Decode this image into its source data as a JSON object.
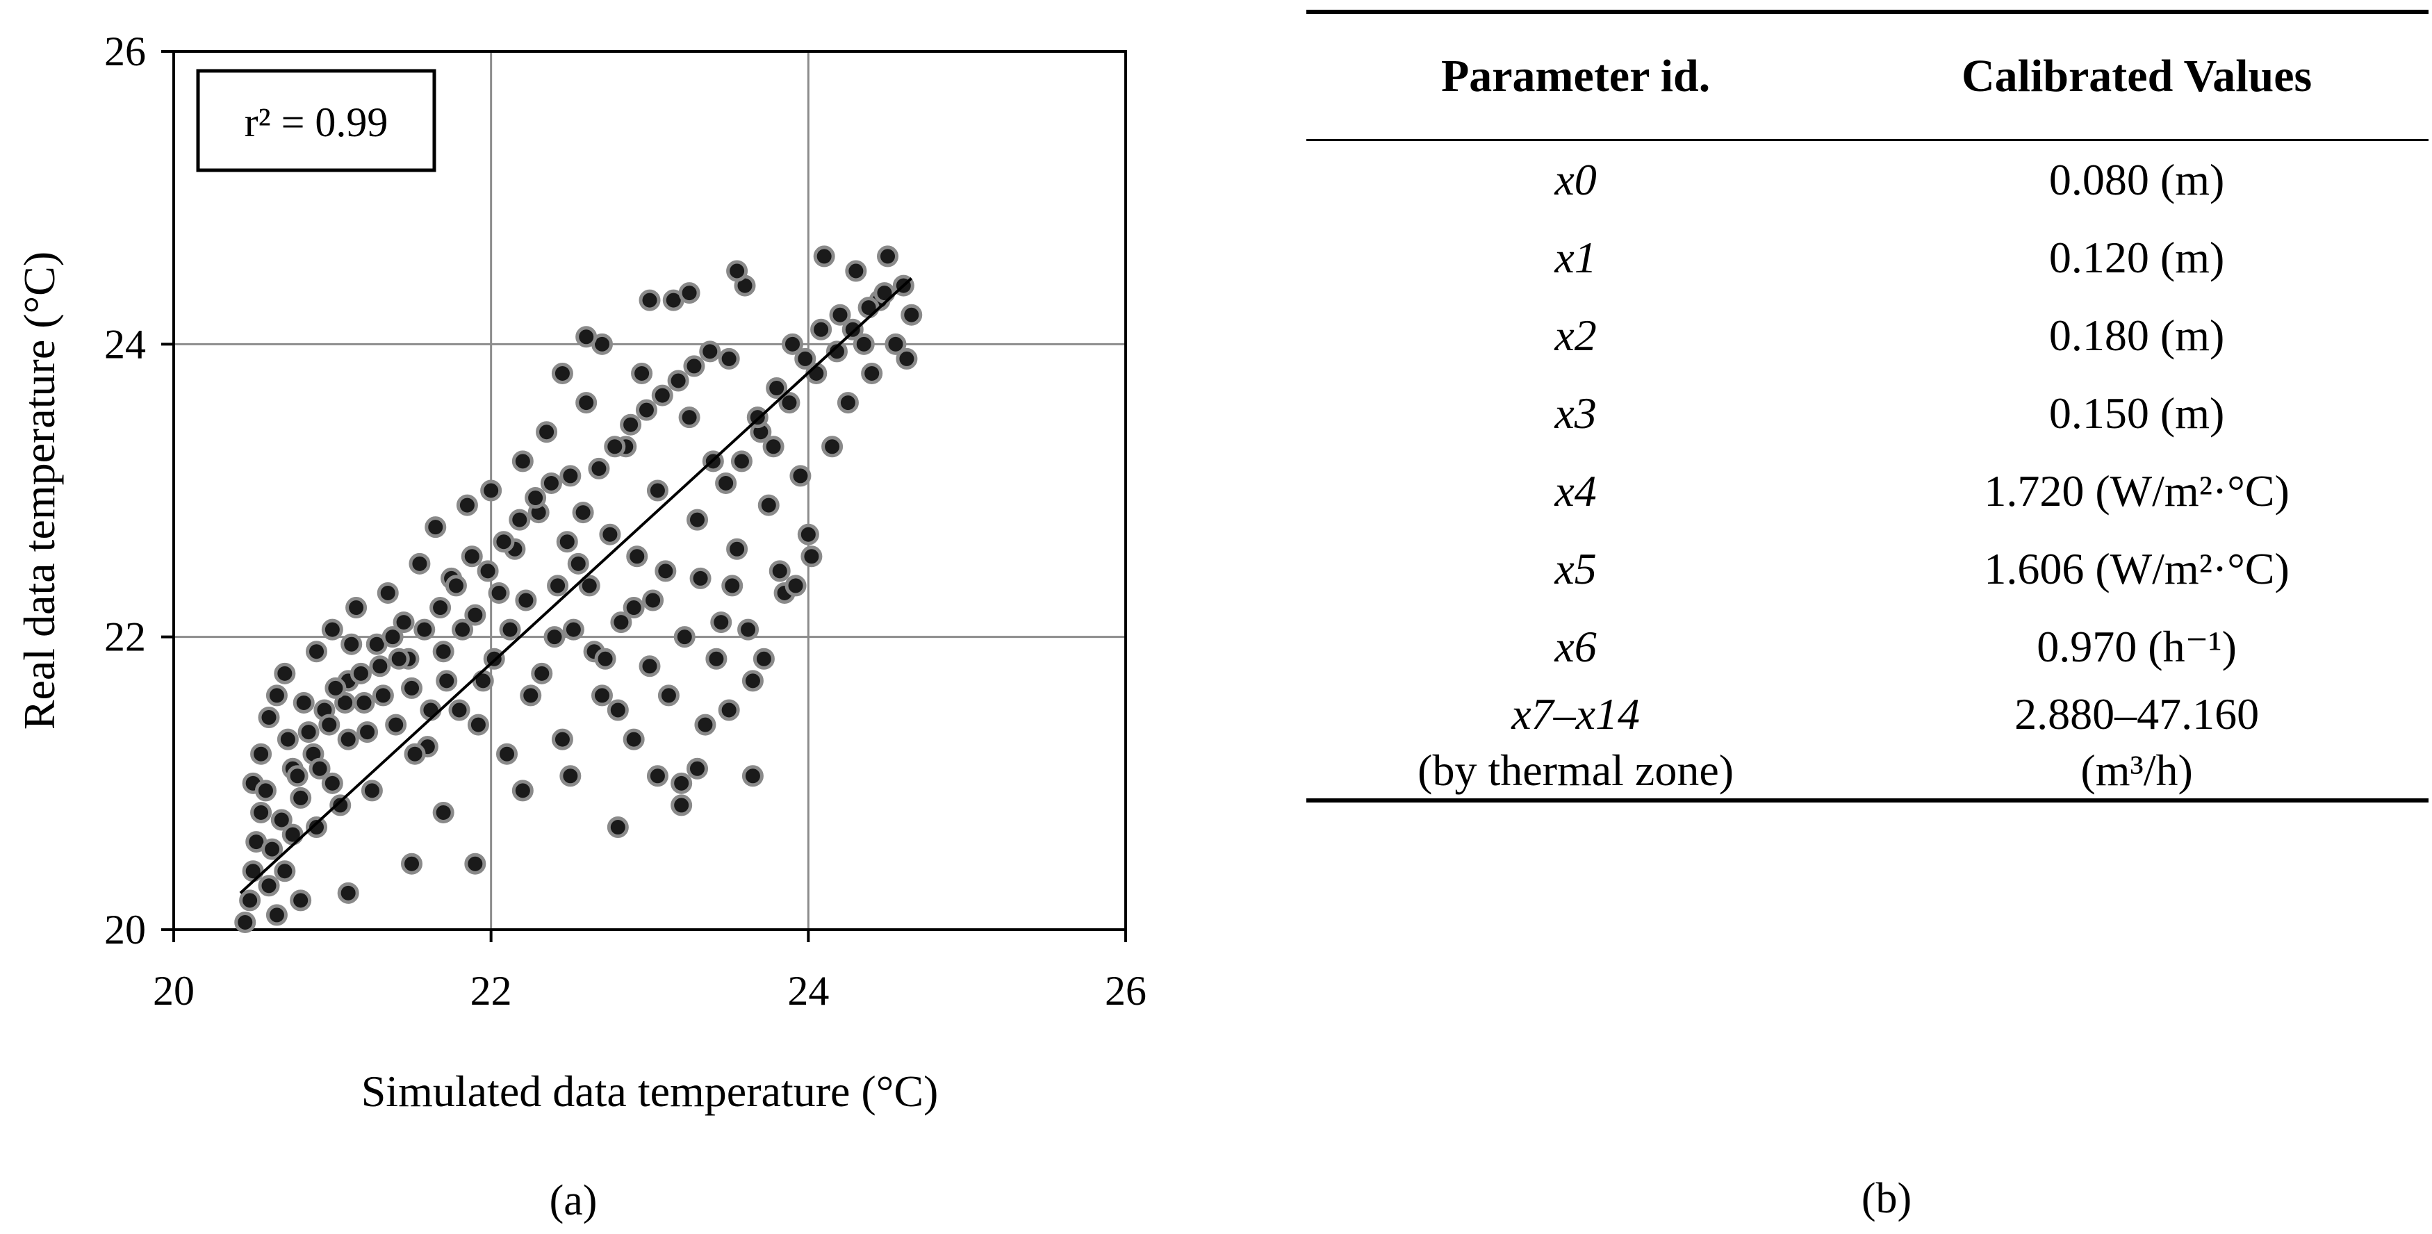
{
  "chart_data": {
    "type": "scatter",
    "xlabel": "Simulated data temperature (°C)",
    "ylabel": "Real data temperature (°C)",
    "xlim": [
      20,
      26
    ],
    "ylim": [
      20,
      26
    ],
    "xticks": [
      20,
      22,
      24,
      26
    ],
    "yticks": [
      20,
      22,
      24,
      26
    ],
    "grid": true,
    "annotation": "r² = 0.99",
    "marker_color": "#1a1a1a",
    "marker_edge": "#8a8a8a",
    "trendline": {
      "x": [
        20.42,
        24.65
      ],
      "y": [
        20.25,
        24.45
      ]
    },
    "points": [
      [
        20.45,
        20.05
      ],
      [
        20.48,
        20.2
      ],
      [
        20.5,
        20.4
      ],
      [
        20.52,
        20.6
      ],
      [
        20.55,
        20.8
      ],
      [
        20.5,
        21.0
      ],
      [
        20.6,
        20.3
      ],
      [
        20.62,
        20.55
      ],
      [
        20.65,
        20.1
      ],
      [
        20.7,
        20.4
      ],
      [
        20.75,
        20.65
      ],
      [
        20.8,
        20.2
      ],
      [
        20.55,
        21.2
      ],
      [
        20.6,
        21.45
      ],
      [
        20.65,
        21.6
      ],
      [
        20.7,
        21.75
      ],
      [
        20.75,
        21.1
      ],
      [
        20.8,
        20.9
      ],
      [
        20.85,
        21.35
      ],
      [
        20.9,
        20.7
      ],
      [
        20.95,
        21.5
      ],
      [
        21.0,
        21.0
      ],
      [
        21.05,
        20.85
      ],
      [
        21.1,
        21.3
      ],
      [
        20.9,
        21.9
      ],
      [
        21.0,
        22.05
      ],
      [
        21.1,
        21.7
      ],
      [
        21.15,
        22.2
      ],
      [
        21.2,
        21.55
      ],
      [
        21.25,
        20.95
      ],
      [
        21.3,
        21.8
      ],
      [
        21.35,
        22.3
      ],
      [
        21.4,
        21.4
      ],
      [
        21.45,
        22.1
      ],
      [
        21.5,
        21.65
      ],
      [
        21.55,
        22.5
      ],
      [
        21.6,
        21.25
      ],
      [
        21.65,
        22.75
      ],
      [
        21.7,
        21.9
      ],
      [
        21.75,
        22.4
      ],
      [
        21.8,
        21.5
      ],
      [
        21.85,
        22.9
      ],
      [
        21.9,
        22.15
      ],
      [
        21.95,
        21.7
      ],
      [
        22.0,
        23.0
      ],
      [
        22.05,
        22.3
      ],
      [
        22.1,
        21.2
      ],
      [
        22.15,
        22.6
      ],
      [
        22.2,
        23.2
      ],
      [
        22.25,
        21.6
      ],
      [
        22.3,
        22.85
      ],
      [
        22.35,
        23.4
      ],
      [
        22.4,
        22.0
      ],
      [
        22.45,
        21.3
      ],
      [
        22.5,
        23.1
      ],
      [
        22.55,
        22.5
      ],
      [
        22.6,
        23.6
      ],
      [
        22.65,
        21.9
      ],
      [
        22.7,
        24.0
      ],
      [
        22.75,
        22.7
      ],
      [
        22.8,
        21.5
      ],
      [
        22.85,
        23.3
      ],
      [
        22.9,
        22.2
      ],
      [
        22.95,
        23.8
      ],
      [
        23.0,
        21.8
      ],
      [
        23.05,
        23.0
      ],
      [
        23.1,
        22.45
      ],
      [
        23.15,
        24.3
      ],
      [
        23.2,
        21.0
      ],
      [
        23.25,
        23.5
      ],
      [
        23.3,
        22.8
      ],
      [
        23.35,
        21.4
      ],
      [
        23.4,
        23.2
      ],
      [
        23.45,
        22.1
      ],
      [
        23.5,
        23.9
      ],
      [
        23.55,
        22.6
      ],
      [
        23.6,
        24.4
      ],
      [
        23.65,
        21.7
      ],
      [
        23.7,
        23.4
      ],
      [
        23.75,
        22.9
      ],
      [
        23.8,
        23.7
      ],
      [
        23.85,
        22.3
      ],
      [
        23.9,
        24.0
      ],
      [
        23.95,
        23.1
      ],
      [
        24.0,
        22.7
      ],
      [
        24.05,
        23.8
      ],
      [
        24.1,
        24.6
      ],
      [
        24.15,
        23.3
      ],
      [
        24.2,
        24.2
      ],
      [
        24.25,
        23.6
      ],
      [
        24.3,
        24.5
      ],
      [
        24.35,
        24.0
      ],
      [
        24.4,
        23.8
      ],
      [
        24.45,
        24.3
      ],
      [
        24.5,
        24.6
      ],
      [
        24.55,
        24.0
      ],
      [
        24.6,
        24.4
      ],
      [
        24.62,
        23.9
      ],
      [
        24.65,
        24.2
      ],
      [
        21.1,
        20.25
      ],
      [
        21.5,
        20.45
      ],
      [
        21.9,
        20.45
      ],
      [
        21.7,
        20.8
      ],
      [
        22.8,
        20.7
      ],
      [
        23.2,
        20.85
      ],
      [
        23.65,
        21.05
      ],
      [
        23.05,
        21.05
      ],
      [
        22.5,
        21.05
      ],
      [
        22.2,
        20.95
      ],
      [
        23.55,
        24.5
      ],
      [
        23.25,
        24.35
      ],
      [
        23.0,
        24.3
      ],
      [
        22.6,
        24.05
      ],
      [
        22.45,
        23.8
      ],
      [
        20.58,
        20.95
      ],
      [
        20.68,
        20.75
      ],
      [
        20.78,
        21.05
      ],
      [
        20.88,
        21.2
      ],
      [
        20.98,
        21.4
      ],
      [
        21.08,
        21.55
      ],
      [
        21.18,
        21.75
      ],
      [
        21.28,
        21.95
      ],
      [
        21.38,
        22.0
      ],
      [
        21.48,
        21.85
      ],
      [
        21.58,
        22.05
      ],
      [
        21.68,
        22.2
      ],
      [
        21.78,
        22.35
      ],
      [
        21.88,
        22.55
      ],
      [
        21.98,
        22.45
      ],
      [
        22.08,
        22.65
      ],
      [
        22.18,
        22.8
      ],
      [
        22.28,
        22.95
      ],
      [
        22.38,
        23.05
      ],
      [
        22.48,
        22.65
      ],
      [
        22.58,
        22.85
      ],
      [
        22.68,
        23.15
      ],
      [
        22.78,
        23.3
      ],
      [
        22.88,
        23.45
      ],
      [
        22.98,
        23.55
      ],
      [
        23.08,
        23.65
      ],
      [
        23.18,
        23.75
      ],
      [
        23.28,
        23.85
      ],
      [
        23.38,
        23.95
      ],
      [
        23.48,
        23.05
      ],
      [
        23.58,
        23.2
      ],
      [
        23.68,
        23.5
      ],
      [
        23.78,
        23.3
      ],
      [
        23.88,
        23.6
      ],
      [
        23.98,
        23.9
      ],
      [
        24.08,
        24.1
      ],
      [
        24.18,
        23.95
      ],
      [
        24.28,
        24.1
      ],
      [
        24.38,
        24.25
      ],
      [
        24.48,
        24.35
      ],
      [
        20.72,
        21.3
      ],
      [
        20.82,
        21.55
      ],
      [
        20.92,
        21.1
      ],
      [
        21.02,
        21.65
      ],
      [
        21.12,
        21.95
      ],
      [
        21.22,
        21.35
      ],
      [
        21.32,
        21.6
      ],
      [
        21.42,
        21.85
      ],
      [
        21.52,
        21.2
      ],
      [
        21.62,
        21.5
      ],
      [
        21.72,
        21.7
      ],
      [
        21.82,
        22.05
      ],
      [
        21.92,
        21.4
      ],
      [
        22.02,
        21.85
      ],
      [
        22.12,
        22.05
      ],
      [
        22.22,
        22.25
      ],
      [
        22.32,
        21.75
      ],
      [
        22.42,
        22.35
      ],
      [
        22.52,
        22.05
      ],
      [
        22.62,
        22.35
      ],
      [
        22.72,
        21.85
      ],
      [
        22.82,
        22.1
      ],
      [
        22.92,
        22.55
      ],
      [
        23.02,
        22.25
      ],
      [
        23.12,
        21.6
      ],
      [
        23.22,
        22.0
      ],
      [
        23.32,
        22.4
      ],
      [
        23.42,
        21.85
      ],
      [
        23.52,
        22.35
      ],
      [
        23.62,
        22.05
      ],
      [
        23.72,
        21.85
      ],
      [
        23.82,
        22.45
      ],
      [
        23.92,
        22.35
      ],
      [
        24.02,
        22.55
      ],
      [
        23.5,
        21.5
      ],
      [
        23.3,
        21.1
      ],
      [
        22.9,
        21.3
      ],
      [
        22.7,
        21.6
      ]
    ]
  },
  "captions": {
    "a": "(a)",
    "b": "(b)"
  },
  "table": {
    "headers": [
      "Parameter id.",
      "Calibrated Values"
    ],
    "rows": [
      {
        "id": "x0",
        "value": "0.080 (m)"
      },
      {
        "id": "x1",
        "value": "0.120 (m)"
      },
      {
        "id": "x2",
        "value": "0.180 (m)"
      },
      {
        "id": "x3",
        "value": "0.150 (m)"
      },
      {
        "id": "x4",
        "value": "1.720 (W/m²·°C)"
      },
      {
        "id": "x5",
        "value": "1.606 (W/m²·°C)"
      },
      {
        "id": "x6",
        "value": "0.970 (h⁻¹)"
      },
      {
        "id": "x7–x14",
        "value": "2.880–47.160"
      }
    ],
    "continuation": {
      "id": "(by thermal zone)",
      "value": "(m³/h)"
    }
  }
}
